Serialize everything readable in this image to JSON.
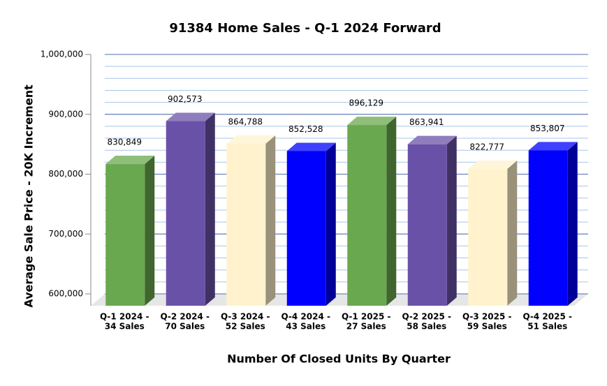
{
  "chart_data": {
    "type": "bar3d",
    "title": "91384 Home Sales - Q-1 2024 Forward",
    "y_label": "Average Sale Price - 20K Increment",
    "x_label": "Number Of Closed Units By Quarter",
    "categories": [
      [
        "Q-1 2024 -",
        "34 Sales"
      ],
      [
        "Q-2 2024 -",
        "70 Sales"
      ],
      [
        "Q-3 2024 -",
        "52 Sales"
      ],
      [
        "Q-4 2024 -",
        "43 Sales"
      ],
      [
        "Q-1 2025 -",
        "27 Sales"
      ],
      [
        "Q-2 2025 -",
        "58 Sales"
      ],
      [
        "Q-3 2025 -",
        "59 Sales"
      ],
      [
        "Q-4 2025 -",
        "51 Sales"
      ]
    ],
    "values": [
      830849,
      902573,
      864788,
      852528,
      896129,
      863941,
      822777,
      853807
    ],
    "value_labels": [
      "830,849",
      "902,573",
      "864,788",
      "852,528",
      "896,129",
      "863,941",
      "822,777",
      "853,807"
    ],
    "colors": [
      "#6aa84f",
      "#6a51a8",
      "#fff2cc",
      "#0000ff",
      "#6aa84f",
      "#6a51a8",
      "#fff2cc",
      "#0000ff"
    ],
    "ylim": [
      600000,
      1000000
    ],
    "yticks": [
      {
        "value": 600000,
        "label": "600,000"
      },
      {
        "value": 700000,
        "label": "700,000"
      },
      {
        "value": 800000,
        "label": "800,000"
      },
      {
        "value": 900000,
        "label": "900,000"
      },
      {
        "value": 1000000,
        "label": "1,000,000"
      }
    ],
    "minor_grid_step": 20000,
    "grid": true
  }
}
